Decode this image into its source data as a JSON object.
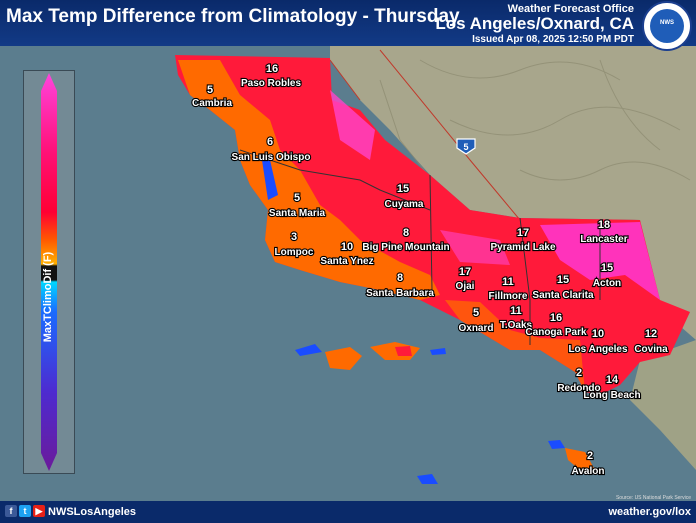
{
  "header": {
    "title": "Max Temp Difference from Climatology - Thursday",
    "office": "Weather Forecast Office",
    "place": "Los Angeles/Oxnard, CA",
    "issued": "Issued Apr 08, 2025 12:50 PM PDT",
    "logo_text": "NATIONAL WEATHER SERVICE"
  },
  "legend": {
    "label": "MaxTClimoDif (F)",
    "colors": [
      "#ff44dd",
      "#ff1177",
      "#ff0033",
      "#ff5a00",
      "#ffb000",
      "#111111",
      "#00d8ff",
      "#1a6bff",
      "#4d2bd0",
      "#6b1a9a"
    ]
  },
  "map": {
    "highway_shield": "5",
    "points": [
      {
        "name": "Paso Robles",
        "value": "16"
      },
      {
        "name": "Cambria",
        "value": "5"
      },
      {
        "name": "San Luis Obispo",
        "value": "6"
      },
      {
        "name": "Cuyama",
        "value": "15"
      },
      {
        "name": "Santa Maria",
        "value": "5"
      },
      {
        "name": "Lompoc",
        "value": "3"
      },
      {
        "name": "Santa Ynez",
        "value": "10"
      },
      {
        "name": "Big Pine Mountain",
        "value": "8"
      },
      {
        "name": "Santa Barbara",
        "value": "8"
      },
      {
        "name": "Pyramid Lake",
        "value": "17"
      },
      {
        "name": "Lancaster",
        "value": "18"
      },
      {
        "name": "Ojai",
        "value": "17"
      },
      {
        "name": "Fillmore",
        "value": "11"
      },
      {
        "name": "Santa Clarita",
        "value": "15"
      },
      {
        "name": "Acton",
        "value": "15"
      },
      {
        "name": "Oxnard",
        "value": "5"
      },
      {
        "name": "T.Oaks",
        "value": "11"
      },
      {
        "name": "Canoga Park",
        "value": "16"
      },
      {
        "name": "Los Angeles",
        "value": "10"
      },
      {
        "name": "Covina",
        "value": "12"
      },
      {
        "name": "Redondo",
        "value": "2"
      },
      {
        "name": "Long Beach",
        "value": "14"
      },
      {
        "name": "Avalon",
        "value": "2"
      }
    ]
  },
  "footer": {
    "icons": [
      "facebook-icon",
      "twitter-icon",
      "youtube-icon"
    ],
    "handle": "NWSLosAngeles",
    "url": "weather.gov/lox",
    "credit": "Source: US National Park Service"
  }
}
